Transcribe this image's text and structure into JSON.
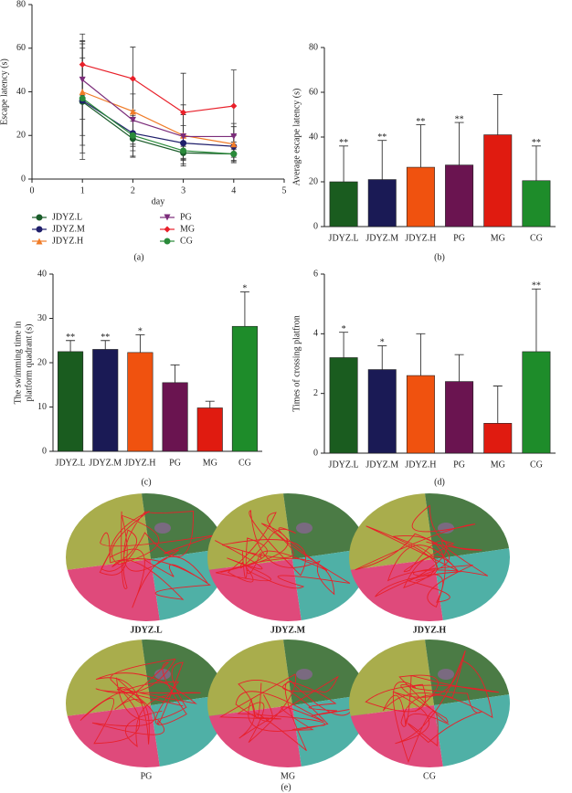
{
  "chart_data": [
    {
      "type": "line",
      "caption": "(a)",
      "x_label": "day",
      "y_label": "Escape latency (s)",
      "x": [
        1,
        2,
        3,
        4
      ],
      "xlim": [
        0,
        5
      ],
      "xticks": [
        0,
        1,
        2,
        3,
        4,
        5
      ],
      "ylim": [
        0,
        80
      ],
      "yticks": [
        0,
        20,
        40,
        60,
        80
      ],
      "series": [
        {
          "name": "JDYZ.L",
          "color": "#1a5c2a",
          "marker": "circle",
          "values": [
            35.5,
            18.5,
            12,
            11.5
          ],
          "errors": [
            20,
            8,
            3,
            3
          ]
        },
        {
          "name": "JDYZ.M",
          "color": "#1f1f6b",
          "marker": "circle",
          "values": [
            36,
            21,
            16.5,
            15
          ],
          "errors": [
            27,
            8,
            8,
            5
          ]
        },
        {
          "name": "JDYZ.H",
          "color": "#f07c28",
          "marker": "triangle",
          "values": [
            40,
            31,
            20,
            16
          ],
          "errors": [
            20,
            15,
            14,
            8
          ]
        },
        {
          "name": "PG",
          "color": "#7b2c7a",
          "marker": "down-triangle",
          "values": [
            45.5,
            27,
            19.5,
            19.5
          ],
          "errors": [
            18,
            12,
            10,
            6
          ]
        },
        {
          "name": "MG",
          "color": "#e8202a",
          "marker": "diamond",
          "values": [
            52.5,
            46,
            30.5,
            33.5
          ],
          "errors": [
            14,
            14.5,
            18,
            16.5
          ]
        },
        {
          "name": "CG",
          "color": "#2a8a3a",
          "marker": "circle",
          "values": [
            37,
            20,
            13,
            11.5
          ],
          "errors": [
            25,
            10,
            6,
            4
          ]
        }
      ]
    },
    {
      "type": "bar",
      "caption": "(b)",
      "y_label": "Average escape latency (s)",
      "categories": [
        "JDYZ.L",
        "JDYZ.M",
        "JDYZ.H",
        "PG",
        "MG",
        "CG"
      ],
      "values": [
        20,
        21,
        26.5,
        27.5,
        41,
        20.5
      ],
      "errors": [
        16,
        17.5,
        19,
        19,
        18,
        15.5
      ],
      "annotations": [
        "**",
        "**",
        "**",
        "**",
        null,
        "**"
      ],
      "colors": [
        "#1a5c1f",
        "#1a1a55",
        "#f0520f",
        "#6a1450",
        "#e01b10",
        "#1e8c2a"
      ],
      "ylim": [
        0,
        80
      ],
      "yticks": [
        0,
        20,
        40,
        60,
        80
      ]
    },
    {
      "type": "bar",
      "caption": "(c)",
      "y_label": [
        "The swimming time in",
        "platform quadrant (s)"
      ],
      "categories": [
        "JDYZ.L",
        "JDYZ.M",
        "JDYZ.H",
        "PG",
        "MG",
        "CG"
      ],
      "values": [
        22.5,
        23,
        22.3,
        15.5,
        9.8,
        28.2
      ],
      "errors": [
        2.5,
        2,
        4,
        4,
        1.5,
        7.8
      ],
      "annotations": [
        "**",
        "**",
        "*",
        null,
        null,
        "*"
      ],
      "colors": [
        "#1a5c1f",
        "#1a1a55",
        "#f0520f",
        "#6a1450",
        "#e01b10",
        "#1e8c2a"
      ],
      "ylim": [
        0,
        40
      ],
      "yticks": [
        0,
        10,
        20,
        30,
        40
      ]
    },
    {
      "type": "bar",
      "caption": "(d)",
      "y_label": "Times of crossing platfron",
      "categories": [
        "JDYZ.L",
        "JDYZ.M",
        "JDYZ.H",
        "PG",
        "MG",
        "CG"
      ],
      "values": [
        3.2,
        2.8,
        2.6,
        2.4,
        1.0,
        3.4
      ],
      "errors": [
        0.85,
        0.8,
        1.4,
        0.9,
        1.25,
        2.1
      ],
      "annotations": [
        "*",
        "*",
        null,
        null,
        null,
        "**"
      ],
      "colors": [
        "#1a5c1f",
        "#1a1a55",
        "#f0520f",
        "#6a1450",
        "#e01b10",
        "#1e8c2a"
      ],
      "ylim": [
        0,
        6
      ],
      "yticks": [
        0,
        2,
        4,
        6
      ]
    }
  ],
  "track_images": {
    "caption": "(e)",
    "labels": [
      "JDYZ.L",
      "JDYZ.M",
      "JDYZ.H",
      "PG",
      "MG",
      "CG"
    ]
  }
}
